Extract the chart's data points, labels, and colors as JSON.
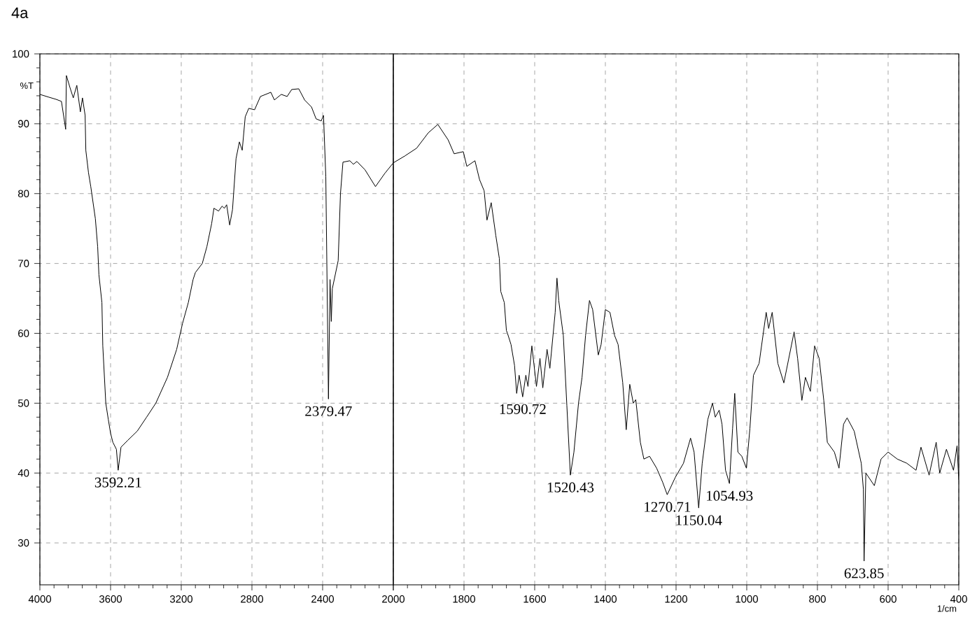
{
  "chart_data": [
    {
      "type": "line",
      "title": "4a",
      "ylabel": "%T",
      "xlim": [
        4000,
        2000
      ],
      "ylim": [
        24,
        100
      ],
      "xticks": [
        4000,
        3600,
        3200,
        2800,
        2400,
        {
          "value": 2000,
          "label": null
        }
      ],
      "yticks": [
        30,
        40,
        50,
        60,
        70,
        80,
        90,
        100
      ],
      "grid": true,
      "series": [
        {
          "color": "#000000",
          "x": [
            4000,
            3949,
            3909,
            3878,
            3854,
            3850,
            3830,
            3811,
            3791,
            3771,
            3759,
            3744,
            3740,
            3725,
            3712,
            3686,
            3673,
            3666,
            3649,
            3644,
            3627,
            3613,
            3600,
            3587,
            3567,
            3557,
            3541,
            3502,
            3449,
            3396,
            3344,
            3278,
            3226,
            3193,
            3160,
            3133,
            3120,
            3081,
            3055,
            3028,
            3015,
            2989,
            2969,
            2956,
            2943,
            2926,
            2910,
            2890,
            2871,
            2855,
            2838,
            2818,
            2785,
            2752,
            2693,
            2673,
            2634,
            2601,
            2575,
            2535,
            2502,
            2463,
            2437,
            2408,
            2395,
            2382,
            2367,
            2358,
            2351,
            2345,
            2312,
            2299,
            2285,
            2246,
            2226,
            2206,
            2160,
            2101,
            2048,
            2000
          ],
          "values": [
            94.2,
            93.8,
            93.5,
            93.2,
            89.2,
            96.9,
            95.2,
            93.7,
            95.5,
            91.7,
            93.7,
            91.2,
            86.2,
            83.0,
            81.0,
            76.4,
            72.4,
            68.4,
            64.4,
            58.2,
            50.0,
            47.7,
            45.7,
            44.4,
            43.4,
            40.4,
            43.7,
            44.7,
            46.0,
            48.0,
            50.0,
            53.7,
            57.7,
            61.4,
            64.4,
            67.7,
            68.7,
            70.0,
            72.4,
            75.7,
            77.9,
            77.5,
            78.2,
            77.9,
            78.4,
            75.5,
            77.7,
            85.0,
            87.4,
            86.2,
            91.0,
            92.2,
            92.0,
            93.9,
            94.5,
            93.4,
            94.2,
            93.9,
            94.9,
            95.0,
            93.4,
            92.4,
            90.7,
            90.4,
            91.2,
            82.4,
            50.6,
            67.7,
            61.7,
            66.4,
            70.4,
            80.0,
            84.5,
            84.7,
            84.2,
            84.6,
            83.4,
            81.0,
            82.9,
            84.4
          ]
        }
      ],
      "annotations": [
        {
          "text": "3592.21",
          "x": 3557,
          "y": 40.4
        },
        {
          "text": "2379.47",
          "x": 2367,
          "y": 50.6
        }
      ]
    },
    {
      "type": "line",
      "xlabel": "1/cm",
      "xlim": [
        2000,
        400
      ],
      "ylim": [
        24,
        100
      ],
      "xticks": [
        2000,
        1800,
        1600,
        1400,
        1200,
        1000,
        800,
        600,
        400
      ],
      "yticks": [
        30,
        40,
        50,
        60,
        70,
        80,
        90,
        100
      ],
      "tick_labels": "x",
      "grid": true,
      "series": [
        {
          "color": "#000000",
          "x": [
            2000,
            1967,
            1934,
            1901,
            1874,
            1845,
            1828,
            1802,
            1792,
            1769,
            1756,
            1743,
            1735,
            1723,
            1710,
            1700,
            1696,
            1686,
            1680,
            1677,
            1667,
            1657,
            1651,
            1644,
            1634,
            1625,
            1619,
            1608,
            1595,
            1585,
            1577,
            1565,
            1557,
            1542,
            1537,
            1532,
            1519,
            1509,
            1499,
            1489,
            1476,
            1466,
            1456,
            1445,
            1436,
            1420,
            1412,
            1400,
            1387,
            1374,
            1364,
            1351,
            1341,
            1331,
            1321,
            1314,
            1301,
            1291,
            1275,
            1255,
            1238,
            1225,
            1202,
            1179,
            1159,
            1149,
            1136,
            1126,
            1110,
            1097,
            1089,
            1078,
            1070,
            1060,
            1049,
            1040,
            1034,
            1025,
            1014,
            1001,
            991,
            981,
            965,
            945,
            938,
            928,
            912,
            895,
            866,
            856,
            844,
            834,
            820,
            808,
            795,
            782,
            772,
            752,
            739,
            726,
            716,
            696,
            676,
            670,
            668,
            663,
            639,
            620,
            600,
            574,
            547,
            521,
            507,
            484,
            464,
            454,
            435,
            415,
            405,
            400
          ],
          "values": [
            84.4,
            85.4,
            86.5,
            88.7,
            89.9,
            87.7,
            85.7,
            86.0,
            83.9,
            84.7,
            82.0,
            80.4,
            76.2,
            78.7,
            74.0,
            70.7,
            66.0,
            64.4,
            60.4,
            60.0,
            58.4,
            55.4,
            51.4,
            54.0,
            50.9,
            54.0,
            52.4,
            58.2,
            52.4,
            56.4,
            52.2,
            57.7,
            55.0,
            63.0,
            67.9,
            64.7,
            59.7,
            49.7,
            39.7,
            43.0,
            50.0,
            53.7,
            59.7,
            64.7,
            63.4,
            56.9,
            58.4,
            63.4,
            63.0,
            59.7,
            58.4,
            53.0,
            46.2,
            52.7,
            50.0,
            50.5,
            44.4,
            42.0,
            42.4,
            40.7,
            38.7,
            36.9,
            39.4,
            41.4,
            45.0,
            43.0,
            35.0,
            41.4,
            47.7,
            50.0,
            48.0,
            49.0,
            47.0,
            40.4,
            38.5,
            46.4,
            51.4,
            43.0,
            42.4,
            40.7,
            46.4,
            54.0,
            55.7,
            63.0,
            60.7,
            63.0,
            55.7,
            52.9,
            60.2,
            56.4,
            50.4,
            53.7,
            51.7,
            58.2,
            56.4,
            50.4,
            44.4,
            43.0,
            40.7,
            47.0,
            47.9,
            46.0,
            41.4,
            37.7,
            27.4,
            40.0,
            38.2,
            42.0,
            43.0,
            42.0,
            41.4,
            40.4,
            43.7,
            39.7,
            44.4,
            40.0,
            43.4,
            40.4,
            43.9,
            39.0
          ]
        }
      ],
      "annotations": [
        {
          "text": "1590.72",
          "x": 1634,
          "y": 50.9
        },
        {
          "text": "1520.43",
          "x": 1499,
          "y": 39.7
        },
        {
          "text": "1270.71",
          "x": 1225,
          "y": 36.9
        },
        {
          "text": "1150.04",
          "x": 1136,
          "y": 35.0
        },
        {
          "text": "1054.93",
          "x": 1049,
          "y": 38.5
        },
        {
          "text": "623.85",
          "x": 668,
          "y": 27.4
        }
      ]
    }
  ]
}
